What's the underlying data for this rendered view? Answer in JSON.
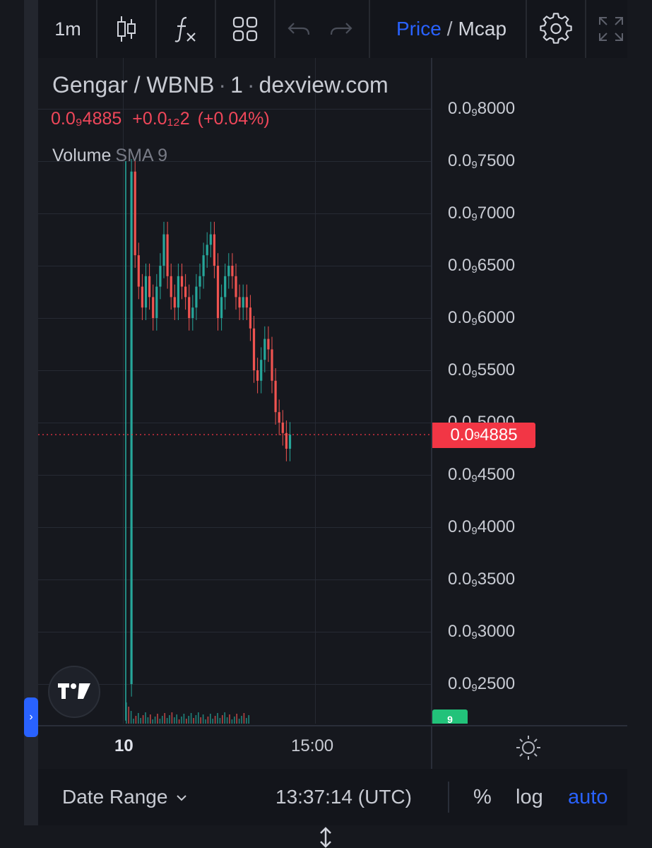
{
  "toolbar": {
    "interval": "1m",
    "price_label": "Price",
    "separator": "/",
    "mcap_label": "Mcap"
  },
  "legend": {
    "symbol": "Gengar / WBNB",
    "interval": "1",
    "source": "dexview.com",
    "last_price": "0.0₉4885",
    "change": "+0.0₁₂2",
    "change_pct": "(+0.04%)",
    "volume_label": "Volume",
    "volume_indicator": "SMA 9"
  },
  "price_axis": {
    "ticks": [
      {
        "lead": "0.0",
        "sub": "9",
        "rest": "8000"
      },
      {
        "lead": "0.0",
        "sub": "9",
        "rest": "7500"
      },
      {
        "lead": "0.0",
        "sub": "9",
        "rest": "7000"
      },
      {
        "lead": "0.0",
        "sub": "9",
        "rest": "6500"
      },
      {
        "lead": "0.0",
        "sub": "9",
        "rest": "6000"
      },
      {
        "lead": "0.0",
        "sub": "9",
        "rest": "5500"
      },
      {
        "lead": "0.0",
        "sub": "9",
        "rest": "5000"
      },
      {
        "lead": "0.0",
        "sub": "9",
        "rest": "4500"
      },
      {
        "lead": "0.0",
        "sub": "9",
        "rest": "4000"
      },
      {
        "lead": "0.0",
        "sub": "9",
        "rest": "3500"
      },
      {
        "lead": "0.0",
        "sub": "9",
        "rest": "3000"
      },
      {
        "lead": "0.0",
        "sub": "9",
        "rest": "2500"
      }
    ],
    "current_tag": {
      "lead": "0.0",
      "sub": "9",
      "rest": "4885"
    },
    "volume_tag": "9"
  },
  "time_axis": {
    "labels": [
      "10",
      "15:00"
    ]
  },
  "bottom_bar": {
    "date_range": "Date Range",
    "clock": "13:37:14 (UTC)",
    "percent": "%",
    "log": "log",
    "auto": "auto"
  },
  "colors": {
    "up": "#26a69a",
    "down": "#ef5350",
    "accent": "#2962ff",
    "price_line": "#f23645",
    "volume_tag": "#22c27a"
  },
  "icons": {
    "candles": "candlestick-icon",
    "indicators": "fx-icon",
    "layouts": "grid-icon",
    "undo": "undo-icon",
    "redo": "redo-icon",
    "settings": "gear-icon",
    "fullscreen": "fullscreen-icon",
    "logo": "tradingview-logo",
    "time_settings": "sun-icon",
    "resize": "resize-vertical-icon",
    "sidebar": "chevron-right-icon"
  },
  "chart_data": {
    "type": "candlestick",
    "price_scale_label_unit": "0.0₉ = 0.000000000",
    "ylim": [
      2.1e-10,
      8.2e-10
    ],
    "last_price": 4.885e-10,
    "series": [
      {
        "values": [
          2.5e-10,
          7.4e-10,
          6.6e-10,
          6.3e-10,
          6.1e-10,
          6.4e-10,
          6.2e-10,
          6e-10,
          6.3e-10,
          6.5e-10,
          6.8e-10,
          6.4e-10,
          6.2e-10,
          6.1e-10,
          6.4e-10,
          6.3e-10,
          6.2e-10,
          6e-10,
          6.1e-10,
          6.3e-10,
          6.4e-10,
          6.6e-10,
          6.7e-10,
          6.8e-10,
          6.5e-10,
          6e-10,
          6.2e-10,
          6.4e-10,
          6.5e-10,
          6.4e-10,
          6.2e-10,
          6.1e-10,
          6.2e-10,
          6.1e-10,
          5.9e-10,
          5.5e-10,
          5.4e-10,
          5.6e-10,
          5.8e-10,
          5.7e-10,
          5.4e-10,
          5.1e-10,
          5e-10,
          4.9e-10,
          4.75e-10,
          4.885e-10
        ]
      }
    ]
  }
}
